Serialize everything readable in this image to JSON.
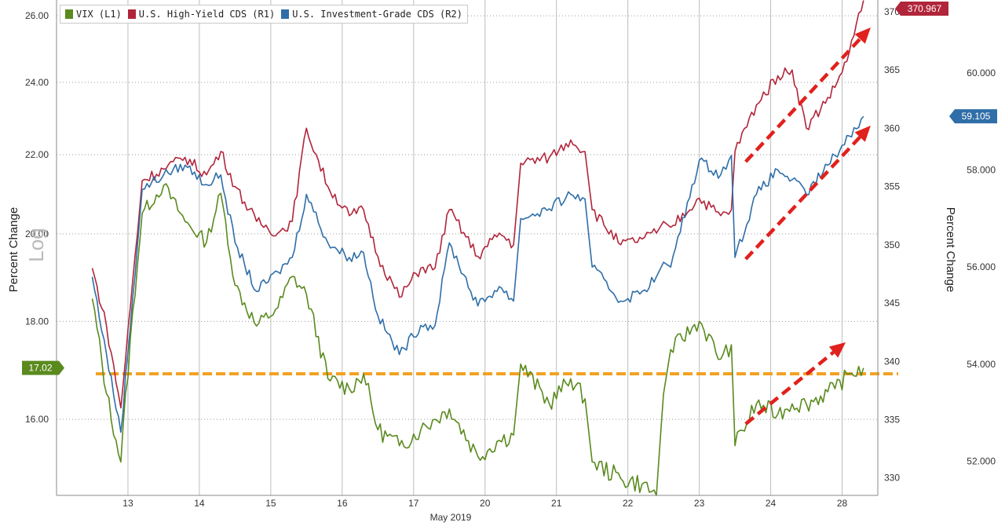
{
  "chart_data": {
    "type": "line",
    "x_axis": {
      "label": "May 2019",
      "day_labels": [
        "13",
        "14",
        "15",
        "16",
        "17",
        "20",
        "21",
        "22",
        "23",
        "24",
        "28"
      ]
    },
    "left_axis": {
      "title": "Percent Change",
      "scale_note": "Log",
      "scale": "log",
      "ticks": [
        "26.00",
        "24.00",
        "22.00",
        "20.00",
        "18.00",
        "16.00"
      ],
      "range": [
        14.6,
        26.5
      ]
    },
    "r1_axis": {
      "ticks": [
        "370",
        "365",
        "360",
        "355",
        "350",
        "345",
        "340",
        "335",
        "330"
      ],
      "range": [
        328.5,
        371.0
      ]
    },
    "r2_axis": {
      "title": "Percent Change",
      "ticks": [
        "60.000",
        "58.000",
        "56.000",
        "54.000",
        "52.000"
      ],
      "range": [
        51.3,
        61.5
      ]
    },
    "series": [
      {
        "name": "VIX (L1)",
        "axis": "left",
        "color": "#5a8a1e",
        "last_value_label": "17.02",
        "x": [
          0.0,
          0.2,
          0.4,
          0.7,
          1.0,
          1.3,
          1.6,
          1.8,
          2.0,
          2.3,
          2.6,
          2.8,
          3.0,
          3.3,
          3.6,
          3.8,
          4.0,
          4.3,
          4.6,
          4.8,
          5.0,
          5.4,
          5.7,
          5.9,
          6.0,
          6.4,
          6.7,
          6.9,
          7.0,
          7.4,
          7.7,
          7.9,
          8.0,
          8.1,
          8.5,
          8.8,
          8.95,
          9.0,
          9.3,
          9.6,
          9.8,
          10.0,
          10.4,
          10.6,
          10.8
        ],
        "y": [
          18.5,
          16.5,
          15.2,
          20.5,
          21.2,
          20.3,
          19.8,
          21.0,
          18.8,
          17.9,
          18.3,
          19.0,
          18.6,
          16.8,
          16.6,
          16.9,
          15.8,
          15.5,
          15.8,
          16.0,
          16.2,
          15.3,
          15.6,
          15.7,
          17.1,
          16.3,
          16.8,
          16.4,
          15.2,
          14.9,
          14.8,
          14.6,
          16.5,
          17.4,
          18.0,
          17.2,
          17.5,
          15.5,
          16.3,
          16.1,
          16.3,
          16.3,
          16.6,
          16.9,
          17.02
        ]
      },
      {
        "name": "U.S. High-Yield CDS (R1)",
        "axis": "r1",
        "color": "#b1253a",
        "last_value_label": "370.967",
        "x": [
          0.0,
          0.2,
          0.4,
          0.7,
          1.0,
          1.3,
          1.6,
          1.8,
          2.0,
          2.3,
          2.6,
          2.8,
          3.0,
          3.3,
          3.6,
          3.8,
          4.0,
          4.3,
          4.6,
          4.8,
          5.0,
          5.4,
          5.7,
          5.9,
          6.0,
          6.4,
          6.7,
          6.9,
          7.0,
          7.4,
          7.7,
          7.9,
          8.0,
          8.1,
          8.5,
          8.8,
          8.95,
          9.0,
          9.3,
          9.6,
          9.8,
          10.0,
          10.4,
          10.6,
          10.8
        ],
        "y": [
          348.0,
          343.0,
          336.0,
          355.5,
          356.5,
          357.5,
          356.0,
          358.0,
          355.0,
          352.0,
          351.0,
          352.0,
          360.0,
          355.0,
          352.5,
          353.0,
          349.0,
          345.5,
          348.0,
          348.0,
          353.0,
          349.0,
          351.0,
          350.0,
          357.0,
          357.5,
          359.0,
          358.0,
          353.0,
          350.0,
          350.5,
          351.0,
          352.0,
          351.5,
          354.0,
          352.5,
          353.0,
          358.0,
          362.0,
          364.5,
          365.0,
          360.0,
          363.5,
          366.5,
          370.967
        ]
      },
      {
        "name": "U.S. Investment-Grade CDS (R2)",
        "axis": "r2",
        "color": "#2f6ea8",
        "last_value_label": "59.105",
        "x": [
          0.0,
          0.2,
          0.4,
          0.7,
          1.0,
          1.3,
          1.6,
          1.8,
          2.0,
          2.3,
          2.6,
          2.8,
          3.0,
          3.3,
          3.6,
          3.8,
          4.0,
          4.3,
          4.6,
          4.8,
          5.0,
          5.4,
          5.7,
          5.9,
          6.0,
          6.4,
          6.7,
          6.9,
          7.0,
          7.4,
          7.7,
          7.9,
          8.0,
          8.1,
          8.5,
          8.8,
          8.95,
          9.0,
          9.3,
          9.6,
          9.8,
          10.0,
          10.4,
          10.6,
          10.8
        ],
        "y": [
          55.8,
          54.2,
          52.6,
          57.6,
          57.9,
          58.1,
          57.7,
          57.9,
          56.5,
          55.5,
          55.9,
          56.2,
          57.5,
          56.5,
          56.2,
          56.3,
          55.0,
          54.2,
          54.8,
          54.8,
          56.5,
          55.2,
          55.6,
          55.3,
          57.0,
          57.2,
          57.5,
          57.4,
          56.0,
          55.3,
          55.5,
          55.8,
          56.1,
          56.0,
          58.2,
          57.9,
          58.3,
          56.2,
          57.5,
          58.0,
          57.8,
          57.5,
          58.3,
          58.7,
          59.105
        ]
      }
    ],
    "reference_line": {
      "axis": "left",
      "value": 16.9,
      "color": "#f2a01e"
    },
    "annotations": "red dashed arrows indicating upward trend",
    "grid": true
  }
}
